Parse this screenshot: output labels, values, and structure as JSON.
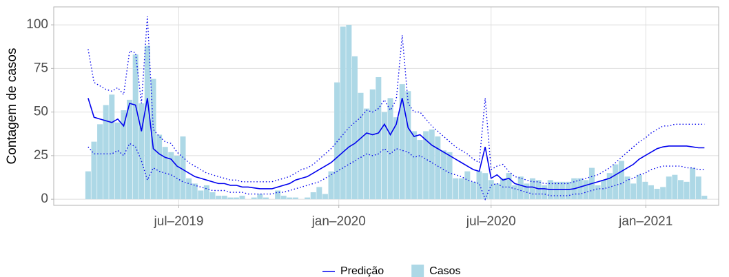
{
  "chart_data": {
    "type": "combo",
    "y_label": "Contagem de casos",
    "x": [
      0,
      1,
      2,
      3,
      4,
      5,
      6,
      7,
      8,
      9,
      10,
      11,
      12,
      13,
      14,
      15,
      16,
      17,
      18,
      19,
      20,
      21,
      22,
      23,
      24,
      25,
      26,
      27,
      28,
      29,
      30,
      31,
      32,
      33,
      34,
      35,
      36,
      37,
      38,
      39,
      40,
      41,
      42,
      43,
      44,
      45,
      46,
      47,
      48,
      49,
      50,
      51,
      52,
      53,
      54,
      55,
      56,
      57,
      58,
      59,
      60,
      61,
      62,
      63,
      64,
      65,
      66,
      67,
      68,
      69,
      70,
      71,
      72,
      73,
      74,
      75,
      76,
      77,
      78,
      79,
      80,
      81,
      82,
      83,
      84,
      85,
      86,
      87,
      88,
      89,
      90,
      91,
      92,
      93,
      94,
      95,
      96,
      97,
      98,
      99,
      100,
      101,
      102,
      103,
      104
    ],
    "xlim": [
      -5.8,
      106.4
    ],
    "xticks": [
      {
        "value": 15.3,
        "label": "jul–2019"
      },
      {
        "value": 42.3,
        "label": "jan–2020"
      },
      {
        "value": 68.0,
        "label": "jul–2020"
      },
      {
        "value": 94.1,
        "label": "jan–2021"
      }
    ],
    "ylim": [
      -3.5,
      110.3
    ],
    "yticks": [
      0,
      25,
      50,
      75,
      100
    ],
    "grid": true,
    "legend": "bottom",
    "series": [
      {
        "name": "Predição",
        "type": "line",
        "style": "solid",
        "color": "#0000ee",
        "values": [
          58,
          47,
          46,
          45,
          44,
          46,
          42,
          55,
          54,
          39,
          58,
          29,
          26,
          24,
          23,
          19,
          17,
          15,
          13,
          12,
          11,
          10,
          9,
          9,
          8,
          8,
          7,
          7,
          6.5,
          6,
          6,
          6,
          7,
          8,
          9,
          11,
          12,
          13,
          15,
          17,
          19,
          21,
          24,
          27,
          30,
          32,
          35,
          38,
          37,
          38,
          43,
          37,
          43,
          58,
          41,
          36,
          37,
          34,
          31,
          29,
          27,
          25,
          23,
          21,
          19,
          17,
          16,
          30,
          12,
          14,
          11,
          12,
          9,
          8,
          7,
          7,
          6,
          6,
          5.5,
          5.5,
          5.5,
          5.5,
          6,
          7,
          8,
          9,
          10,
          11,
          12,
          14,
          16,
          18,
          20,
          23,
          25,
          27,
          29,
          30,
          30.5,
          30.5,
          30.5,
          30.5,
          30,
          29.5,
          29.5
        ]
      },
      {
        "name": "Casos",
        "type": "bar",
        "color": "#add8e6",
        "values": [
          16,
          33,
          43,
          54,
          60,
          44,
          51,
          57,
          83,
          55,
          88,
          69,
          37,
          30,
          27,
          25,
          36,
          12,
          9,
          5,
          8,
          4,
          2,
          2,
          1,
          1,
          2,
          0,
          1,
          3,
          1,
          0,
          5,
          2,
          1,
          1,
          0,
          1,
          4,
          7,
          3,
          16,
          67,
          99,
          100,
          82,
          61,
          52,
          63,
          70,
          50,
          58,
          47,
          66,
          62,
          39,
          34,
          39,
          40,
          36,
          28,
          27,
          12,
          12,
          16,
          10,
          16,
          15,
          11,
          9,
          12,
          15,
          8,
          13,
          9,
          12,
          11,
          8,
          11,
          10,
          10,
          10,
          12,
          12,
          11,
          18,
          8,
          11,
          15,
          20,
          22,
          13,
          9,
          14,
          10,
          8,
          6,
          7,
          13,
          14,
          11,
          10,
          18,
          13,
          2
        ]
      },
      {
        "type": "line",
        "style": "dotted",
        "color": "#0000ee",
        "values": [
          86,
          67,
          65,
          63,
          62,
          64,
          60,
          85,
          84,
          55,
          105,
          40,
          36,
          33,
          32,
          27,
          24,
          21,
          19,
          17,
          15,
          14,
          13,
          12,
          11,
          11,
          10,
          10,
          10,
          10,
          10,
          10,
          11,
          12,
          13,
          15,
          17,
          18,
          20,
          23,
          26,
          29,
          33,
          37,
          41,
          44,
          47,
          51,
          50,
          52,
          57,
          51,
          57,
          94,
          55,
          50,
          50,
          46,
          42,
          39,
          36,
          33,
          30,
          28,
          26,
          23,
          21,
          58,
          17,
          19,
          20,
          16,
          13,
          12,
          11,
          10,
          10,
          9,
          9,
          9,
          9,
          9,
          10,
          11,
          12,
          13,
          14,
          16,
          18,
          21,
          24,
          27,
          30,
          33,
          35,
          38,
          40,
          42,
          42,
          43,
          43,
          43,
          43,
          43,
          43
        ]
      },
      {
        "type": "line",
        "style": "dotted",
        "color": "#0000ee",
        "values": [
          30,
          26,
          26,
          26,
          26,
          28,
          25,
          32,
          30,
          22,
          11,
          18,
          16,
          15,
          14,
          12,
          10,
          9,
          8,
          7,
          6,
          5,
          5,
          5,
          4,
          4,
          4,
          3,
          3,
          3,
          3,
          3,
          4,
          4,
          5,
          6,
          7,
          8,
          9,
          10,
          12,
          14,
          16,
          18,
          20,
          22,
          24,
          26,
          25,
          26,
          29,
          26,
          29,
          28,
          27,
          24,
          25,
          23,
          21,
          19,
          17,
          15,
          14,
          13,
          11,
          10,
          9,
          0,
          8,
          9,
          7,
          7,
          6,
          5,
          4,
          3,
          3,
          3,
          2,
          2,
          2,
          2,
          3,
          3,
          4,
          5,
          6,
          6,
          7,
          8,
          9,
          11,
          12,
          14,
          15,
          17,
          18,
          19,
          19,
          19,
          19,
          18,
          18,
          17,
          17
        ]
      }
    ]
  }
}
